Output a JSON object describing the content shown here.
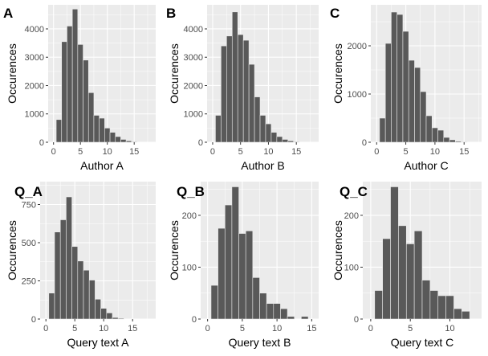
{
  "colors": {
    "bar": "#595959",
    "panel_background": "#ebebeb",
    "grid": "#ffffff"
  },
  "chart_data": [
    {
      "type": "bar",
      "tag": "A",
      "xlabel": "Author A",
      "ylabel": "Occurences",
      "xlim": [
        -1,
        19
      ],
      "ylim": [
        0,
        4850
      ],
      "xticks": [
        0,
        5,
        10,
        15
      ],
      "yticks": [
        0,
        1000,
        2000,
        3000,
        4000
      ],
      "grid": true,
      "x": [
        1,
        2,
        3,
        4,
        5,
        6,
        7,
        8,
        9,
        10,
        11,
        12,
        13,
        14,
        15
      ],
      "values": [
        800,
        3550,
        4100,
        4700,
        3450,
        2900,
        1750,
        950,
        850,
        500,
        350,
        200,
        100,
        50,
        20
      ]
    },
    {
      "type": "bar",
      "tag": "B",
      "xlabel": "Author B",
      "ylabel": "Occurences",
      "xlim": [
        -1,
        19
      ],
      "ylim": [
        0,
        4850
      ],
      "xticks": [
        0,
        5,
        10,
        15
      ],
      "yticks": [
        0,
        1000,
        2000,
        3000,
        4000
      ],
      "grid": true,
      "x": [
        1,
        2,
        3,
        4,
        5,
        6,
        7,
        8,
        9,
        10,
        11,
        12,
        13,
        14,
        15
      ],
      "values": [
        950,
        3400,
        3750,
        4600,
        3800,
        3600,
        2750,
        1600,
        950,
        650,
        350,
        200,
        100,
        50,
        20
      ]
    },
    {
      "type": "bar",
      "tag": "C",
      "xlabel": "Author C",
      "ylabel": "Occurences",
      "xlim": [
        -1,
        18
      ],
      "ylim": [
        0,
        2850
      ],
      "xticks": [
        0,
        5,
        10,
        15
      ],
      "yticks": [
        0,
        1000,
        2000
      ],
      "grid": true,
      "x": [
        1,
        2,
        3,
        4,
        5,
        6,
        7,
        8,
        9,
        10,
        11,
        12,
        13,
        14,
        15
      ],
      "values": [
        500,
        2050,
        2700,
        2650,
        2300,
        1700,
        1550,
        1050,
        550,
        300,
        250,
        100,
        50,
        20,
        10
      ]
    },
    {
      "type": "bar",
      "tag": "Q_A",
      "xlabel": "Query text A",
      "ylabel": "Occurences",
      "xlim": [
        -1,
        19
      ],
      "ylim": [
        0,
        900
      ],
      "xticks": [
        0,
        5,
        10,
        15
      ],
      "yticks": [
        0,
        250,
        500,
        750
      ],
      "grid": true,
      "x": [
        1,
        2,
        3,
        4,
        5,
        6,
        7,
        8,
        9,
        10,
        11,
        12,
        13
      ],
      "values": [
        170,
        570,
        650,
        800,
        475,
        380,
        320,
        255,
        130,
        70,
        40,
        10,
        5
      ]
    },
    {
      "type": "bar",
      "tag": "Q_B",
      "xlabel": "Query text B",
      "ylabel": "Occurences",
      "xlim": [
        -1,
        16
      ],
      "ylim": [
        0,
        265
      ],
      "xticks": [
        0,
        5,
        10,
        15
      ],
      "yticks": [
        0,
        100,
        200
      ],
      "grid": true,
      "x": [
        1,
        2,
        3,
        4,
        5,
        6,
        7,
        8,
        9,
        10,
        11,
        12,
        13,
        14
      ],
      "values": [
        65,
        175,
        220,
        255,
        165,
        170,
        80,
        50,
        30,
        30,
        20,
        5,
        0,
        5
      ]
    },
    {
      "type": "bar",
      "tag": "Q_C",
      "xlabel": "Query text C",
      "ylabel": "Occurences",
      "xlim": [
        -1,
        14
      ],
      "ylim": [
        0,
        265
      ],
      "xticks": [
        0,
        5,
        10
      ],
      "yticks": [
        0,
        100,
        200
      ],
      "grid": true,
      "x": [
        1,
        2,
        3,
        4,
        5,
        6,
        7,
        8,
        9,
        10,
        11,
        12
      ],
      "values": [
        55,
        155,
        255,
        180,
        145,
        170,
        75,
        55,
        45,
        45,
        20,
        15
      ]
    }
  ]
}
